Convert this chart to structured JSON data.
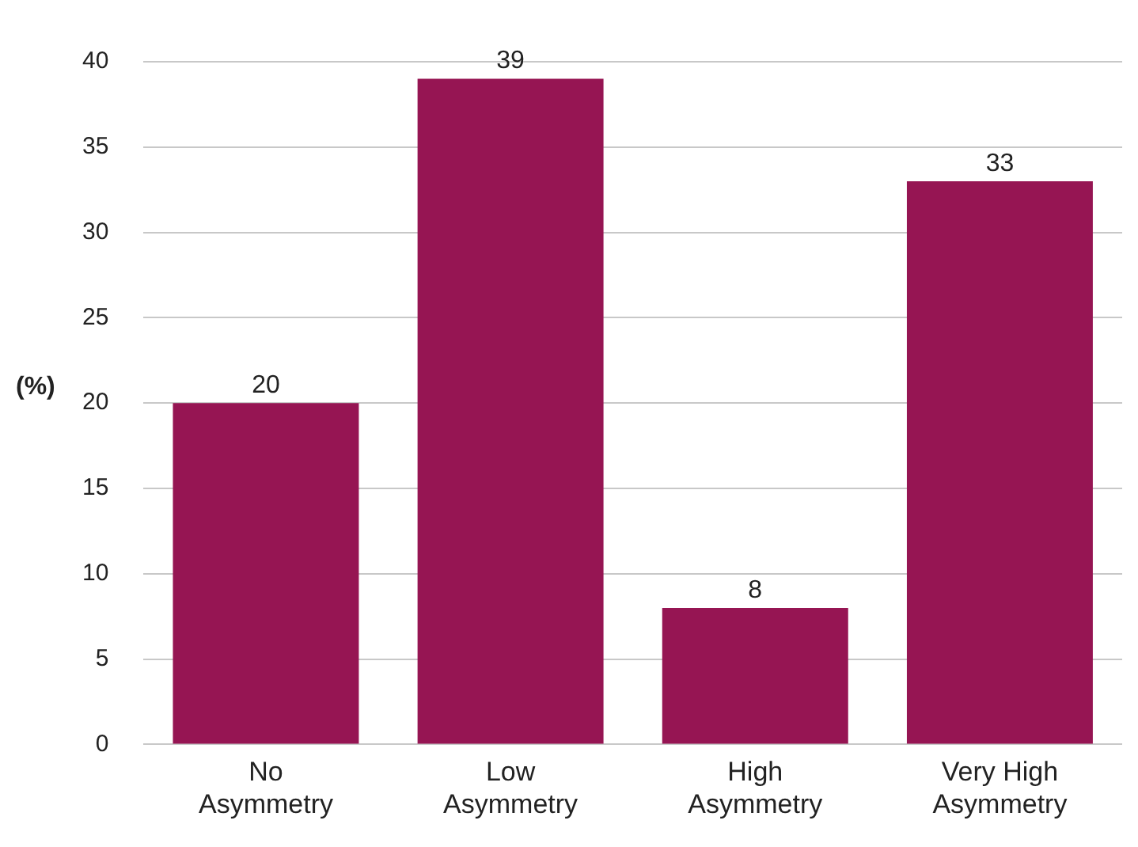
{
  "chart_data": {
    "type": "bar",
    "ylabel": "(%)",
    "categories": [
      "No Asymmetry",
      "Low Asymmetry",
      "High Asymmetry",
      "Very High Asymmetry"
    ],
    "values": [
      20,
      39,
      8,
      33
    ],
    "color": "#961553",
    "ylim": [
      0,
      40
    ],
    "yticks": [
      0,
      5,
      10,
      15,
      20,
      25,
      30,
      35,
      40
    ],
    "grid": "y",
    "data_labels": true,
    "legend": false
  }
}
